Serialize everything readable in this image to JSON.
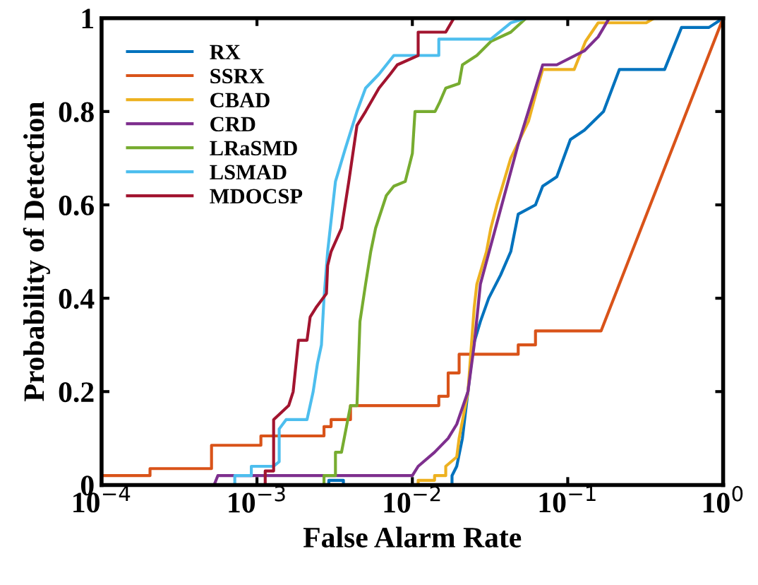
{
  "chart_data": {
    "type": "line",
    "xlabel": "False Alarm Rate",
    "ylabel": "Probability of Detection",
    "log": "x",
    "xlim": [
      0.0001,
      1
    ],
    "xticks": [
      {
        "value": 0.0001,
        "label": "10$^{−4}$"
      },
      {
        "value": 0.001,
        "label": "10$^{−3}$"
      },
      {
        "value": 0.01,
        "label": "10$^{−2}$"
      },
      {
        "value": 0.1,
        "label": "10$^{−1}$"
      },
      {
        "value": 1,
        "label": "10$^{0}$"
      }
    ],
    "ylim": [
      0,
      1
    ],
    "yticks": [
      0,
      0.2,
      0.4,
      0.6,
      0.8,
      1
    ],
    "grid": false,
    "legend": "top left",
    "marker": "none",
    "line_style": "solid",
    "series": [
      {
        "name": "RX",
        "color": "#0072bd",
        "x": [
          0.0001,
          0.0029,
          0.0029,
          0.0036,
          0.0036,
          0.018,
          0.018,
          0.0193,
          0.021,
          0.0228,
          0.0247,
          0.0274,
          0.031,
          0.037,
          0.043,
          0.048,
          0.062,
          0.069,
          0.085,
          0.104,
          0.128,
          0.17,
          0.215,
          0.42,
          0.54,
          0.81,
          1
        ],
        "values": [
          0,
          0,
          0.01,
          0.01,
          0,
          0,
          0.02,
          0.04,
          0.1,
          0.2,
          0.3,
          0.35,
          0.4,
          0.45,
          0.5,
          0.58,
          0.6,
          0.64,
          0.66,
          0.74,
          0.76,
          0.8,
          0.89,
          0.89,
          0.98,
          0.98,
          1
        ]
      },
      {
        "name": "SSRX",
        "color": "#d95319",
        "x": [
          0.0001,
          0.000205,
          0.000205,
          0.00051,
          0.00051,
          0.00106,
          0.00106,
          0.0027,
          0.0027,
          0.003,
          0.003,
          0.004,
          0.004,
          0.0148,
          0.0148,
          0.017,
          0.017,
          0.02,
          0.02,
          0.048,
          0.048,
          0.062,
          0.062,
          0.164,
          1
        ],
        "values": [
          0.02,
          0.02,
          0.035,
          0.035,
          0.085,
          0.085,
          0.105,
          0.105,
          0.125,
          0.125,
          0.14,
          0.14,
          0.17,
          0.17,
          0.19,
          0.19,
          0.24,
          0.24,
          0.28,
          0.28,
          0.3,
          0.3,
          0.33,
          0.33,
          1
        ]
      },
      {
        "name": "CBAD",
        "color": "#edb120",
        "x": [
          0.0001,
          0.0109,
          0.0109,
          0.0139,
          0.0139,
          0.0164,
          0.0164,
          0.0193,
          0.02,
          0.0228,
          0.024,
          0.025,
          0.026,
          0.03,
          0.032,
          0.035,
          0.043,
          0.056,
          0.065,
          0.069,
          0.11,
          0.13,
          0.157,
          0.32,
          0.36
        ],
        "values": [
          0,
          0,
          0.01,
          0.01,
          0.02,
          0.02,
          0.04,
          0.06,
          0.1,
          0.2,
          0.3,
          0.38,
          0.43,
          0.5,
          0.55,
          0.6,
          0.7,
          0.78,
          0.86,
          0.89,
          0.89,
          0.95,
          0.99,
          0.99,
          1
        ]
      },
      {
        "name": "CRD",
        "color": "#7e2f8e",
        "x": [
          0.0001,
          0.00053,
          0.00056,
          0.01,
          0.0109,
          0.0139,
          0.017,
          0.0193,
          0.0228,
          0.025,
          0.0274,
          0.048,
          0.069,
          0.085,
          0.128,
          0.157,
          0.185
        ],
        "values": [
          0,
          0,
          0.02,
          0.02,
          0.04,
          0.07,
          0.1,
          0.13,
          0.2,
          0.3,
          0.43,
          0.73,
          0.9,
          0.9,
          0.93,
          0.96,
          1
        ]
      },
      {
        "name": "LRaSMD",
        "color": "#77ac30",
        "x": [
          0.0001,
          0.0027,
          0.0027,
          0.0032,
          0.0032,
          0.0035,
          0.004,
          0.0044,
          0.0046,
          0.005,
          0.0054,
          0.0058,
          0.0068,
          0.0076,
          0.009,
          0.01,
          0.0104,
          0.014,
          0.015,
          0.0164,
          0.02,
          0.021,
          0.026,
          0.032,
          0.043,
          0.054
        ],
        "values": [
          0,
          0,
          0.02,
          0.02,
          0.07,
          0.07,
          0.17,
          0.17,
          0.35,
          0.43,
          0.5,
          0.55,
          0.62,
          0.64,
          0.65,
          0.71,
          0.8,
          0.8,
          0.82,
          0.85,
          0.86,
          0.9,
          0.92,
          0.95,
          0.97,
          1
        ]
      },
      {
        "name": "LSMAD",
        "color": "#4dbeee",
        "x": [
          0.0001,
          0.00072,
          0.00072,
          0.00092,
          0.00092,
          0.00128,
          0.00139,
          0.00139,
          0.00154,
          0.0021,
          0.0023,
          0.00245,
          0.0026,
          0.0027,
          0.00285,
          0.0032,
          0.0037,
          0.0044,
          0.005,
          0.0061,
          0.0076,
          0.0148,
          0.0148,
          0.032,
          0.043,
          0.054
        ],
        "values": [
          0,
          0,
          0.02,
          0.02,
          0.04,
          0.04,
          0.05,
          0.12,
          0.14,
          0.14,
          0.2,
          0.26,
          0.3,
          0.4,
          0.5,
          0.65,
          0.72,
          0.8,
          0.85,
          0.88,
          0.92,
          0.92,
          0.955,
          0.955,
          0.99,
          1
        ]
      },
      {
        "name": "MDOCSP",
        "color": "#a2142f",
        "x": [
          0.0001,
          0.00113,
          0.00113,
          0.00128,
          0.00128,
          0.0016,
          0.00171,
          0.00185,
          0.0021,
          0.0022,
          0.0024,
          0.0028,
          0.00285,
          0.003,
          0.0035,
          0.0039,
          0.0044,
          0.005,
          0.0061,
          0.0072,
          0.008,
          0.0109,
          0.0109,
          0.0164,
          0.0185
        ],
        "values": [
          0,
          0,
          0.03,
          0.03,
          0.14,
          0.17,
          0.2,
          0.31,
          0.31,
          0.36,
          0.38,
          0.41,
          0.47,
          0.5,
          0.55,
          0.65,
          0.77,
          0.8,
          0.85,
          0.88,
          0.9,
          0.92,
          0.97,
          0.97,
          1
        ]
      }
    ]
  }
}
